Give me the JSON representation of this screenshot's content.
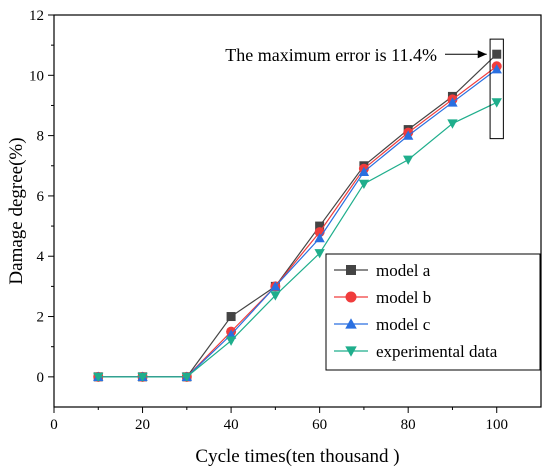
{
  "chart_data": {
    "type": "line",
    "title": "",
    "xlabel": "Cycle times(ten thousand )",
    "ylabel": "Damage degree(%)",
    "xlim": [
      0,
      110
    ],
    "ylim": [
      -1,
      12
    ],
    "xticks": [
      0,
      20,
      40,
      60,
      80,
      100
    ],
    "yticks": [
      0,
      2,
      4,
      6,
      8,
      10,
      12
    ],
    "x": [
      10,
      20,
      30,
      40,
      50,
      60,
      70,
      80,
      90,
      100
    ],
    "legend_position": "bottom-right",
    "grid": false,
    "series": [
      {
        "name": "model a",
        "marker": "square",
        "color": "#444444",
        "values": [
          0,
          0,
          0,
          2.0,
          3.0,
          5.0,
          7.0,
          8.2,
          9.3,
          10.7
        ]
      },
      {
        "name": "model b",
        "marker": "circle",
        "color": "#f03c3c",
        "values": [
          0,
          0,
          0,
          1.5,
          3.0,
          4.8,
          6.9,
          8.1,
          9.2,
          10.3
        ]
      },
      {
        "name": "model c",
        "marker": "triangle-up",
        "color": "#2a6fe0",
        "values": [
          0,
          0,
          0,
          1.4,
          3.0,
          4.6,
          6.8,
          8.0,
          9.1,
          10.2
        ]
      },
      {
        "name": "experimental data",
        "marker": "triangle-down",
        "color": "#1fae8c",
        "values": [
          0,
          0,
          0,
          1.2,
          2.7,
          4.1,
          6.4,
          7.2,
          8.4,
          9.1
        ]
      }
    ],
    "annotation": {
      "text": "The maximum error is 11.4%",
      "box_x": [
        98.5,
        101.5
      ],
      "box_y": [
        7.9,
        11.2
      ],
      "arrow_to": [
        100,
        10.7
      ]
    }
  }
}
